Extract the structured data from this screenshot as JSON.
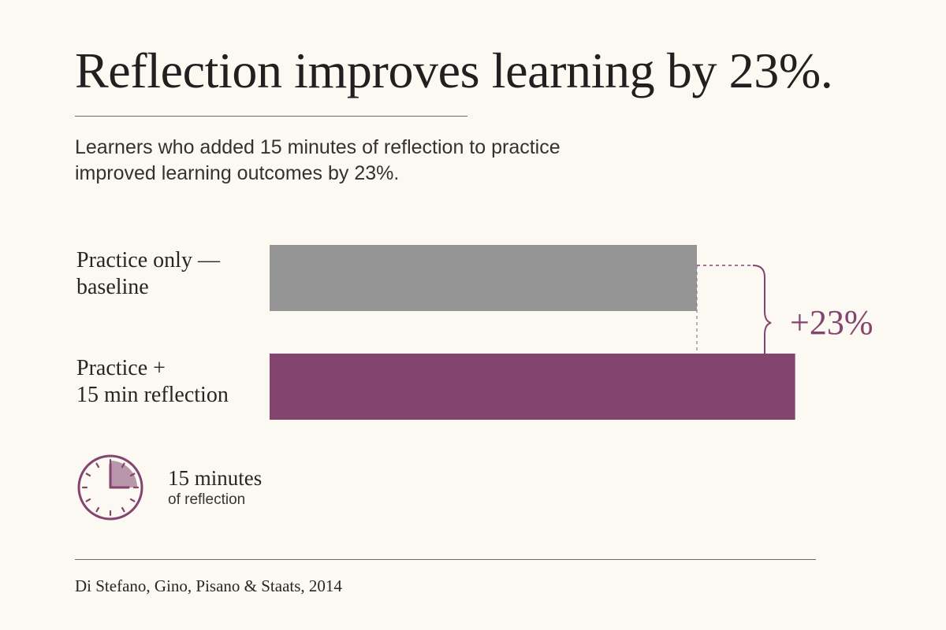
{
  "header": {
    "title": "Reflection improves learning by 23%.",
    "subtitle_lines": [
      "Learners who added 15 minutes of reflection to practice",
      "improved learning outcomes by 23%."
    ]
  },
  "chart_data": {
    "type": "bar",
    "orientation": "horizontal",
    "categories": [
      "Practice only — baseline",
      "Practice + 15 min reflection"
    ],
    "category_label_lines": [
      [
        "Practice only —",
        "baseline"
      ],
      [
        "Practice +",
        "15 min reflection"
      ]
    ],
    "values": [
      100,
      123
    ],
    "annotation": "+23%",
    "axis_visible": false,
    "grid": false,
    "colors": [
      "#959595",
      "#834570"
    ]
  },
  "reflection_note": {
    "icon": "clock-icon",
    "headline": "15 minutes",
    "caption": "of reflection"
  },
  "source": "Di Stefano, Gino, Pisano & Staats, 2014",
  "colors": {
    "accent": "#834570",
    "baseline": "#959595",
    "background": "#fcf8f2"
  }
}
